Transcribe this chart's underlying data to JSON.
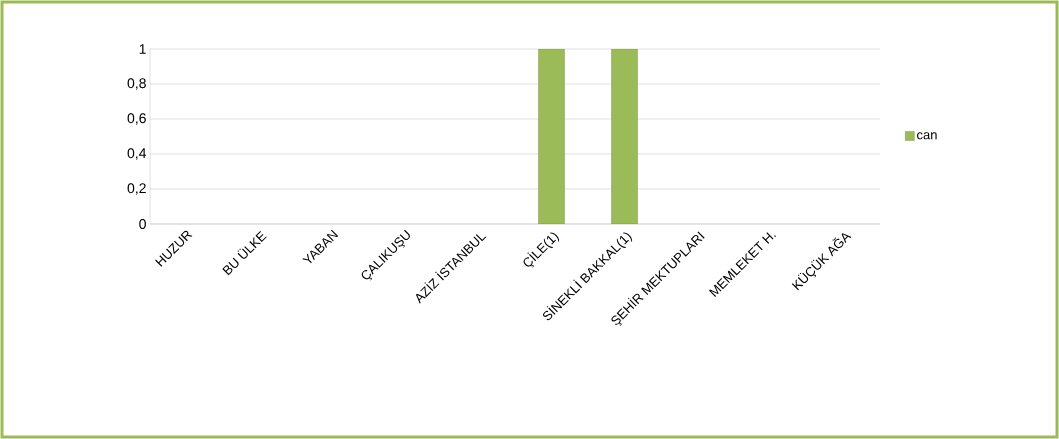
{
  "chart_data": {
    "type": "bar",
    "categories": [
      "HUZUR",
      "BU ÜLKE",
      "YABAN",
      "ÇALIKUŞU",
      "AZİZ İSTANBUL",
      "ÇİLE(1)",
      "SİNEKLİ BAKKAL(1)",
      "ŞEHİR MEKTUPLARI",
      "MEMLEKET H.",
      "KÜÇÜK AĞA"
    ],
    "series": [
      {
        "name": "can",
        "color": "#9bbb59",
        "values": [
          null,
          null,
          null,
          null,
          null,
          1,
          1,
          null,
          null,
          null
        ]
      }
    ],
    "ylim": [
      0,
      1
    ],
    "yticks": [
      0,
      {
        "value": 0.2,
        "label": "0,2"
      },
      {
        "value": 0.4,
        "label": "0,4"
      },
      {
        "value": 0.6,
        "label": "0,6"
      },
      {
        "value": 0.8,
        "label": "0,8"
      },
      1
    ],
    "grid": "y",
    "legend": "right"
  }
}
